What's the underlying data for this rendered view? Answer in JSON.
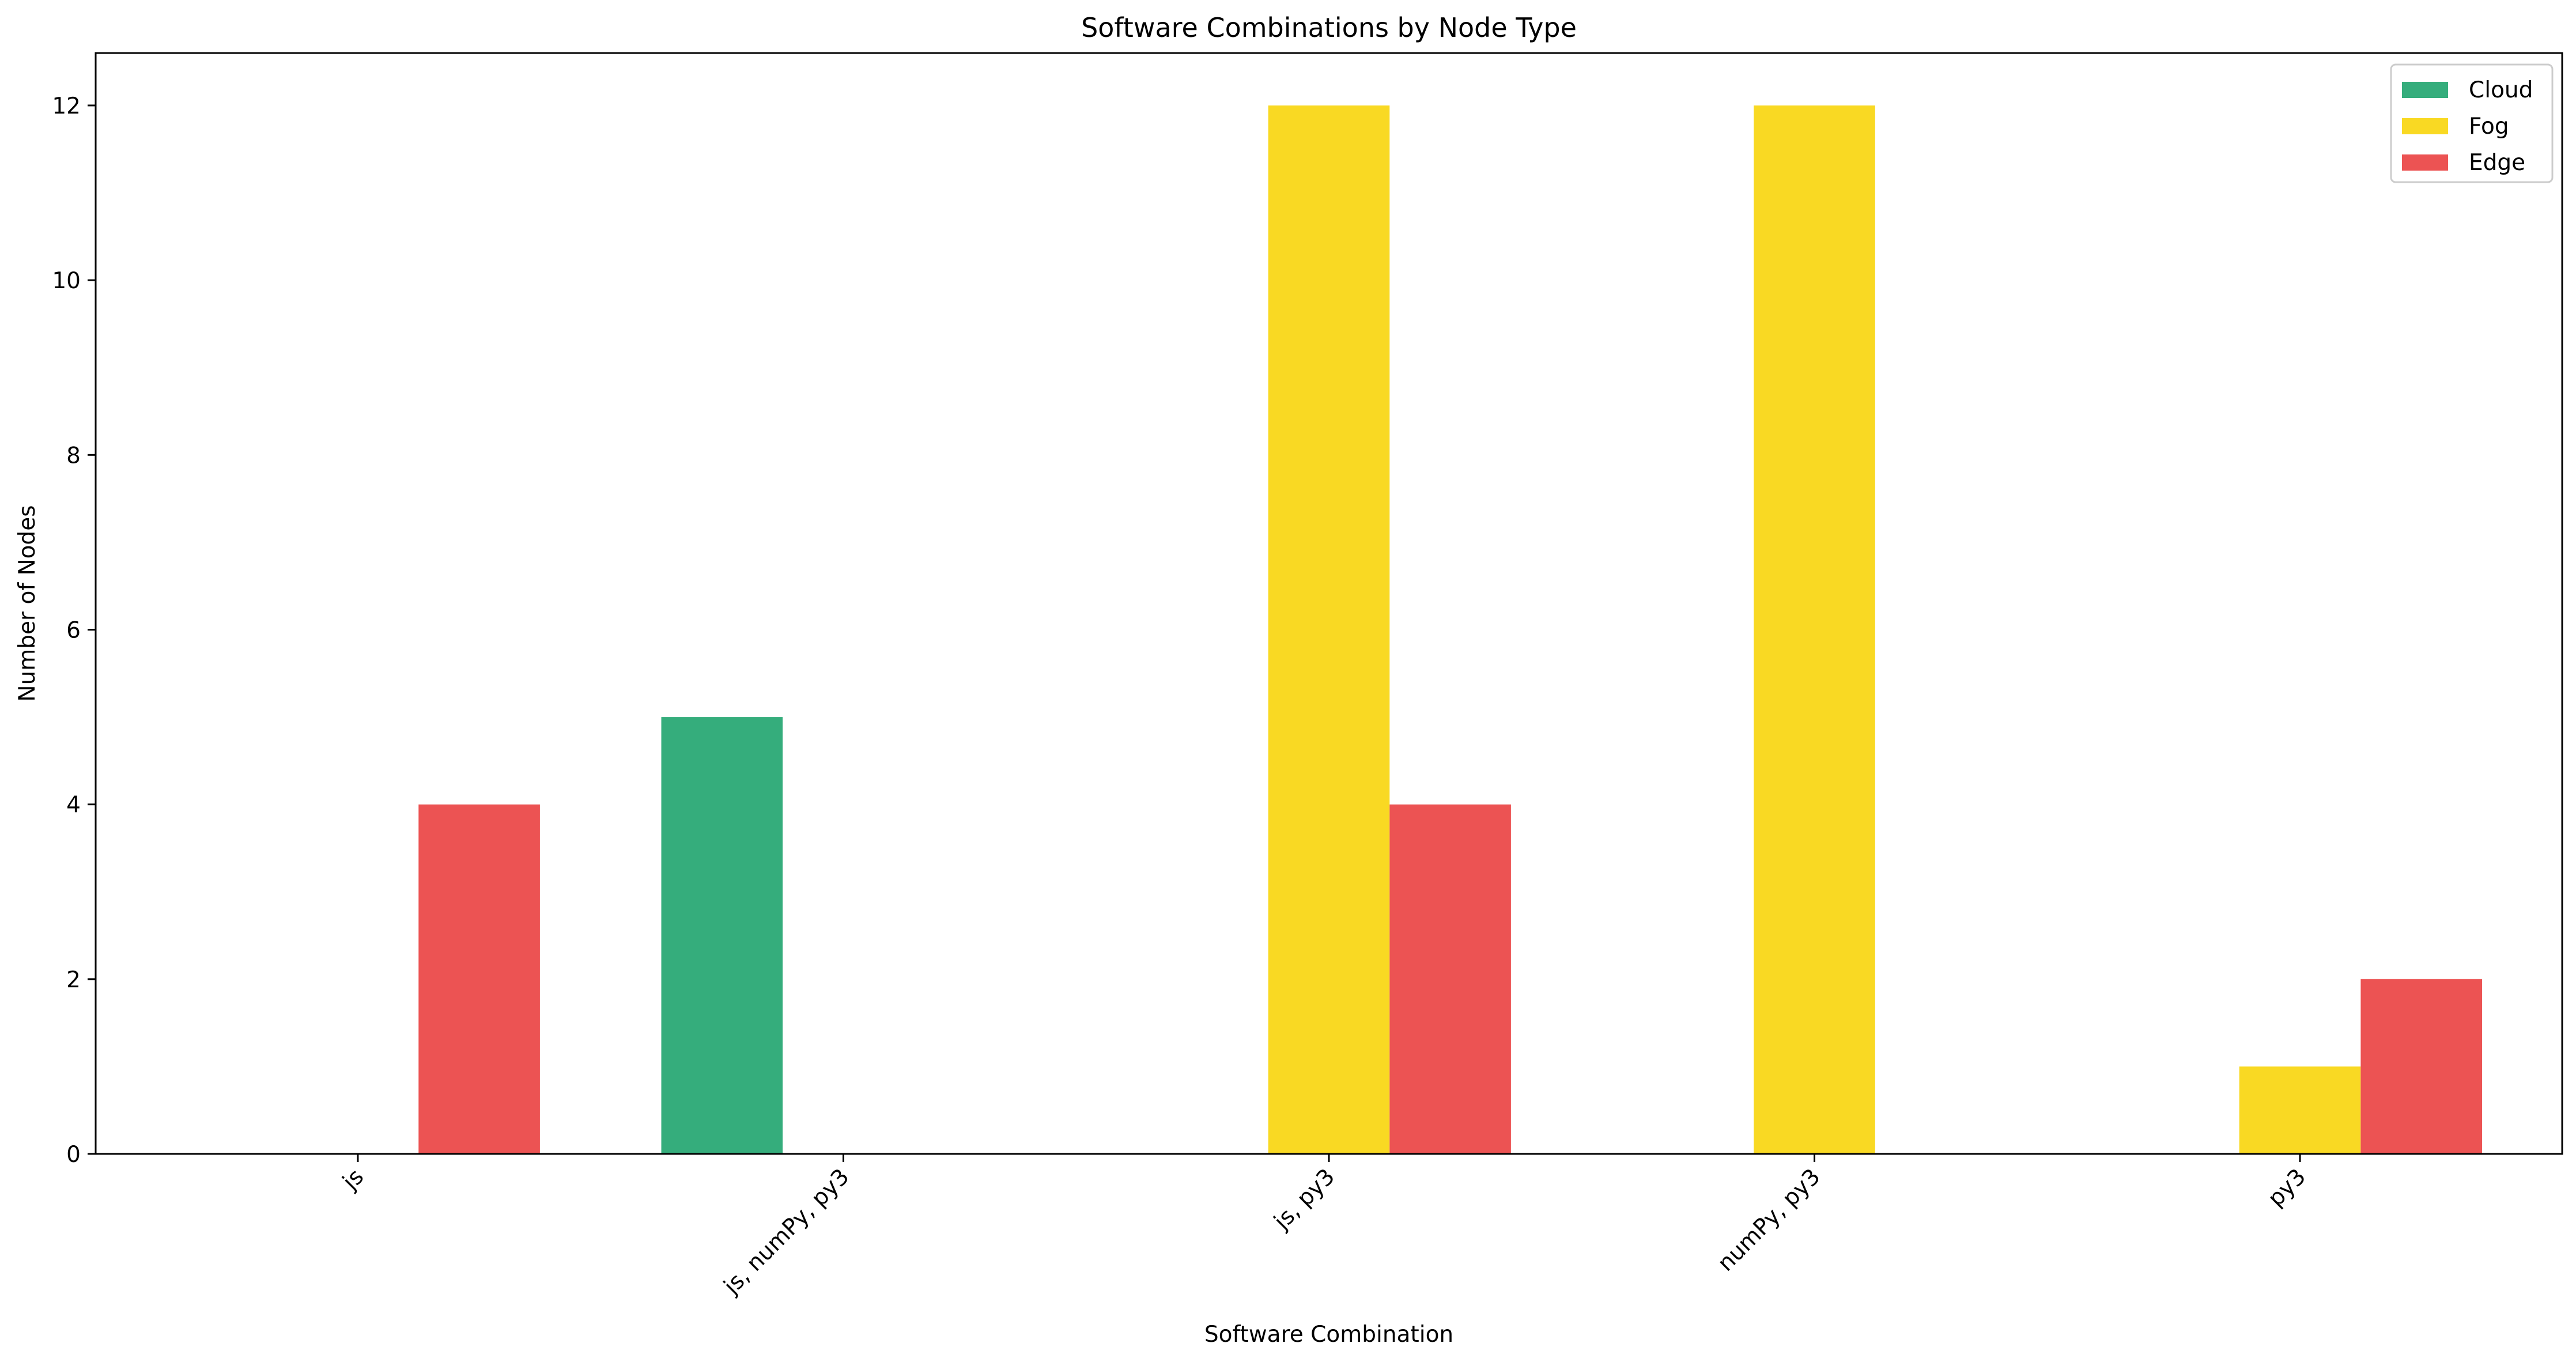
{
  "chart_data": {
    "type": "bar",
    "title": "Software Combinations by Node Type",
    "xlabel": "Software Combination",
    "ylabel": "Number of Nodes",
    "categories": [
      "js",
      "js, numPy, py3",
      "js, py3",
      "numPy, py3",
      "py3"
    ],
    "series": [
      {
        "name": "Cloud",
        "color": "#35ad7c",
        "values": [
          0,
          5,
          0,
          0,
          0
        ]
      },
      {
        "name": "Fog",
        "color": "#f9d923",
        "values": [
          0,
          0,
          12,
          12,
          1
        ]
      },
      {
        "name": "Edge",
        "color": "#ec5353",
        "values": [
          4,
          0,
          4,
          0,
          2
        ]
      }
    ],
    "ylim": [
      0,
      12.6
    ],
    "yticks": [
      0,
      2,
      4,
      6,
      8,
      10,
      12
    ],
    "grid": false,
    "legend_position": "top-right"
  }
}
